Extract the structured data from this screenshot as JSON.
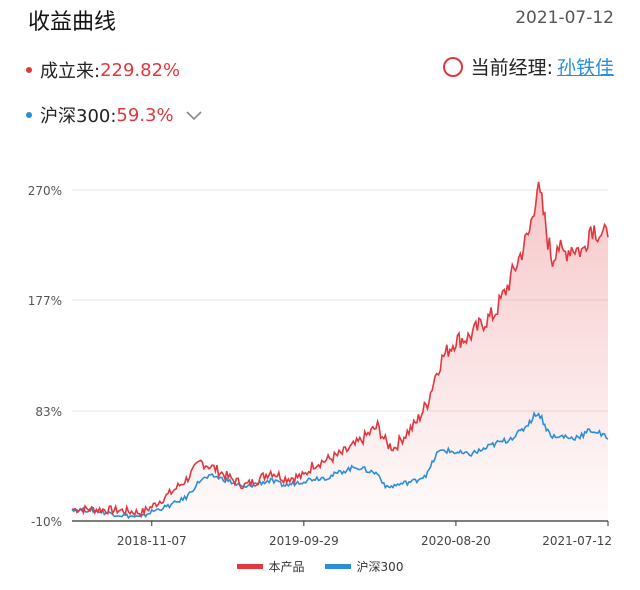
{
  "header": {
    "title": "收益曲线",
    "date": "2021-07-12",
    "fund_label": "成立来:",
    "fund_return": "229.82%",
    "bench_label": "沪深300:",
    "bench_return": "59.3%",
    "manager_label": "当前经理:",
    "manager_name": "孙铁佳"
  },
  "colors": {
    "product": "#e0383e",
    "benchmark": "#2a8fd8"
  },
  "chart_data": {
    "type": "line",
    "x_ticks": [
      "2018-11-07",
      "2019-09-29",
      "2020-08-20",
      "2021-07-12"
    ],
    "y_ticks": [
      "270%",
      "177%",
      "83%",
      "-10%"
    ],
    "ylim": [
      -10,
      270
    ],
    "xlim": [
      "2018-05-20",
      "2021-07-12"
    ],
    "grid": true,
    "legend_position": "bottom",
    "series": [
      {
        "name": "本产品",
        "color": "#e0383e",
        "fill": true,
        "points": [
          [
            "2018-05-20",
            0
          ],
          [
            "2018-07-01",
            0
          ],
          [
            "2018-09-01",
            -1
          ],
          [
            "2018-10-15",
            -3
          ],
          [
            "2018-11-07",
            2
          ],
          [
            "2018-12-15",
            13
          ],
          [
            "2019-01-20",
            25
          ],
          [
            "2019-02-20",
            40
          ],
          [
            "2019-03-20",
            35
          ],
          [
            "2019-04-20",
            27
          ],
          [
            "2019-05-25",
            20
          ],
          [
            "2019-06-20",
            24
          ],
          [
            "2019-07-20",
            32
          ],
          [
            "2019-08-20",
            26
          ],
          [
            "2019-09-29",
            28
          ],
          [
            "2019-10-20",
            38
          ],
          [
            "2019-11-20",
            42
          ],
          [
            "2019-12-20",
            47
          ],
          [
            "2020-01-20",
            55
          ],
          [
            "2020-02-10",
            62
          ],
          [
            "2020-03-05",
            70
          ],
          [
            "2020-03-25",
            55
          ],
          [
            "2020-04-10",
            52
          ],
          [
            "2020-05-01",
            62
          ],
          [
            "2020-05-25",
            72
          ],
          [
            "2020-06-20",
            90
          ],
          [
            "2020-07-10",
            117
          ],
          [
            "2020-07-25",
            130
          ],
          [
            "2020-08-20",
            143
          ],
          [
            "2020-09-15",
            145
          ],
          [
            "2020-10-15",
            157
          ],
          [
            "2020-11-10",
            165
          ],
          [
            "2020-12-05",
            185
          ],
          [
            "2021-01-05",
            215
          ],
          [
            "2021-01-25",
            235
          ],
          [
            "2021-02-10",
            272
          ],
          [
            "2021-02-20",
            258
          ],
          [
            "2021-03-05",
            228
          ],
          [
            "2021-03-15",
            210
          ],
          [
            "2021-03-25",
            225
          ],
          [
            "2021-04-05",
            215
          ],
          [
            "2021-04-25",
            222
          ],
          [
            "2021-05-20",
            218
          ],
          [
            "2021-06-05",
            240
          ],
          [
            "2021-06-20",
            235
          ],
          [
            "2021-07-01",
            232
          ],
          [
            "2021-07-12",
            230
          ]
        ]
      },
      {
        "name": "沪深300",
        "color": "#2a8fd8",
        "fill": false,
        "points": [
          [
            "2018-05-20",
            0
          ],
          [
            "2018-07-01",
            -1
          ],
          [
            "2018-09-01",
            -5
          ],
          [
            "2018-10-15",
            -7
          ],
          [
            "2018-11-07",
            -2
          ],
          [
            "2018-12-15",
            3
          ],
          [
            "2019-01-20",
            10
          ],
          [
            "2019-02-20",
            25
          ],
          [
            "2019-03-20",
            28
          ],
          [
            "2019-04-20",
            24
          ],
          [
            "2019-05-25",
            18
          ],
          [
            "2019-06-20",
            22
          ],
          [
            "2019-07-20",
            24
          ],
          [
            "2019-08-20",
            20
          ],
          [
            "2019-09-29",
            24
          ],
          [
            "2019-10-20",
            26
          ],
          [
            "2019-11-20",
            27
          ],
          [
            "2019-12-20",
            32
          ],
          [
            "2020-01-20",
            36
          ],
          [
            "2020-02-10",
            33
          ],
          [
            "2020-03-05",
            30
          ],
          [
            "2020-03-25",
            18
          ],
          [
            "2020-04-10",
            20
          ],
          [
            "2020-05-01",
            22
          ],
          [
            "2020-05-25",
            24
          ],
          [
            "2020-06-20",
            30
          ],
          [
            "2020-07-10",
            47
          ],
          [
            "2020-07-25",
            50
          ],
          [
            "2020-08-20",
            48
          ],
          [
            "2020-09-15",
            46
          ],
          [
            "2020-10-15",
            50
          ],
          [
            "2020-11-10",
            55
          ],
          [
            "2020-12-05",
            58
          ],
          [
            "2021-01-05",
            65
          ],
          [
            "2021-01-25",
            74
          ],
          [
            "2021-02-10",
            82
          ],
          [
            "2021-02-20",
            77
          ],
          [
            "2021-03-05",
            66
          ],
          [
            "2021-03-15",
            62
          ],
          [
            "2021-03-25",
            60
          ],
          [
            "2021-04-05",
            62
          ],
          [
            "2021-04-25",
            60
          ],
          [
            "2021-05-20",
            63
          ],
          [
            "2021-06-05",
            67
          ],
          [
            "2021-06-20",
            65
          ],
          [
            "2021-07-01",
            62
          ],
          [
            "2021-07-12",
            59.3
          ]
        ]
      }
    ]
  }
}
